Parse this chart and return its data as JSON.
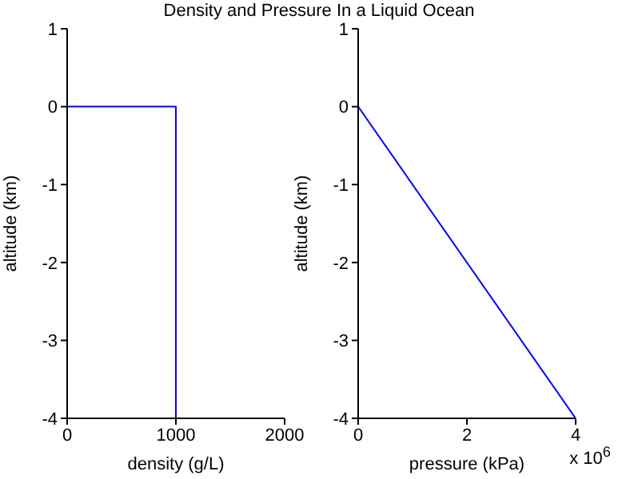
{
  "chart_data": [
    {
      "type": "line",
      "title": "Density and Pressure In a Liquid Ocean",
      "xlabel": "density (g/L)",
      "ylabel": "altitude (km)",
      "xlim": [
        0,
        2000
      ],
      "xticks": [
        0,
        1000,
        2000
      ],
      "ylim": [
        -4,
        1
      ],
      "yticks": [
        -4,
        -3,
        -2,
        -1,
        0,
        1
      ],
      "grid": false,
      "legend": false,
      "series": [
        {
          "color": "#0000ff",
          "x": [
            0,
            1000,
            1000
          ],
          "values": [
            0,
            0,
            -4
          ]
        }
      ]
    },
    {
      "type": "line",
      "xlabel": "pressure (kPa)",
      "ylabel": "altitude (km)",
      "xlim": [
        0,
        4
      ],
      "xticks": [
        0,
        2,
        4
      ],
      "ylim": [
        -4,
        1
      ],
      "yticks": [
        -4,
        -3,
        -2,
        -1,
        0,
        1
      ],
      "grid": false,
      "legend": false,
      "annotations": [
        "x 10$^{6}$"
      ],
      "series": [
        {
          "color": "#0000ff",
          "x": [
            0,
            4
          ],
          "values": [
            0,
            -4
          ]
        }
      ]
    }
  ]
}
